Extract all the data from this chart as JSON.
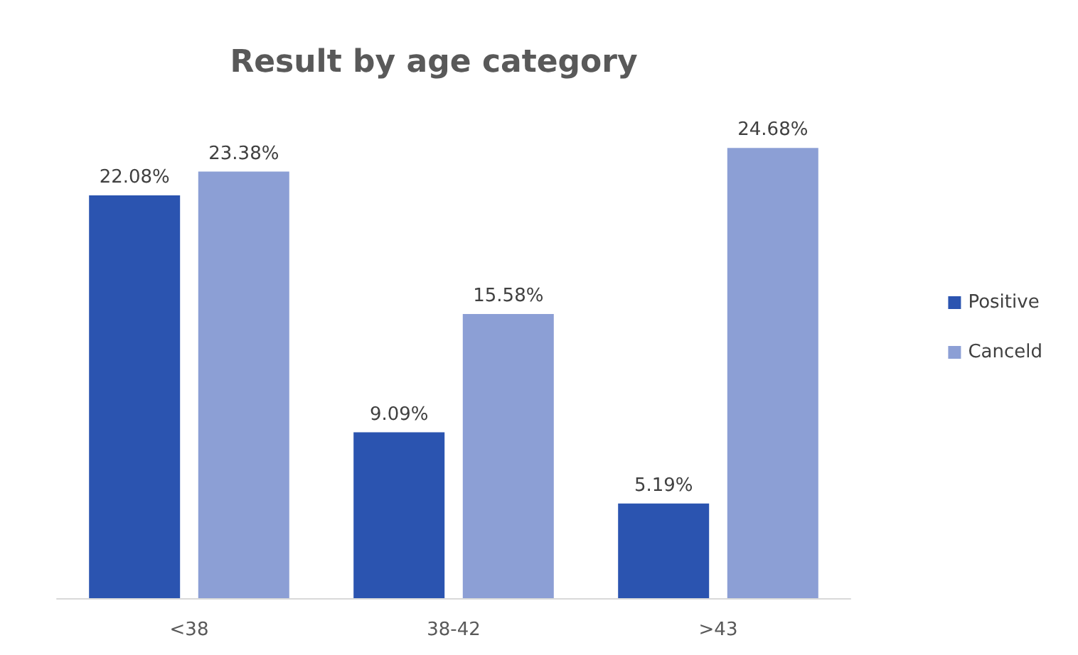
{
  "chart_data": {
    "type": "bar",
    "title": "Result by age category",
    "categories": [
      "<38",
      "38-42",
      ">43"
    ],
    "series": [
      {
        "name": "Positive",
        "color": "#2b54b0",
        "values": [
          22.08,
          9.09,
          5.19
        ],
        "value_labels": [
          "22.08%",
          "9.09%",
          "5.19%"
        ]
      },
      {
        "name": "Canceld",
        "color": "#8c9fd5",
        "values": [
          23.38,
          15.58,
          24.68
        ],
        "value_labels": [
          "23.38%",
          "15.58%",
          "24.68%"
        ]
      }
    ],
    "legend": "right"
  }
}
